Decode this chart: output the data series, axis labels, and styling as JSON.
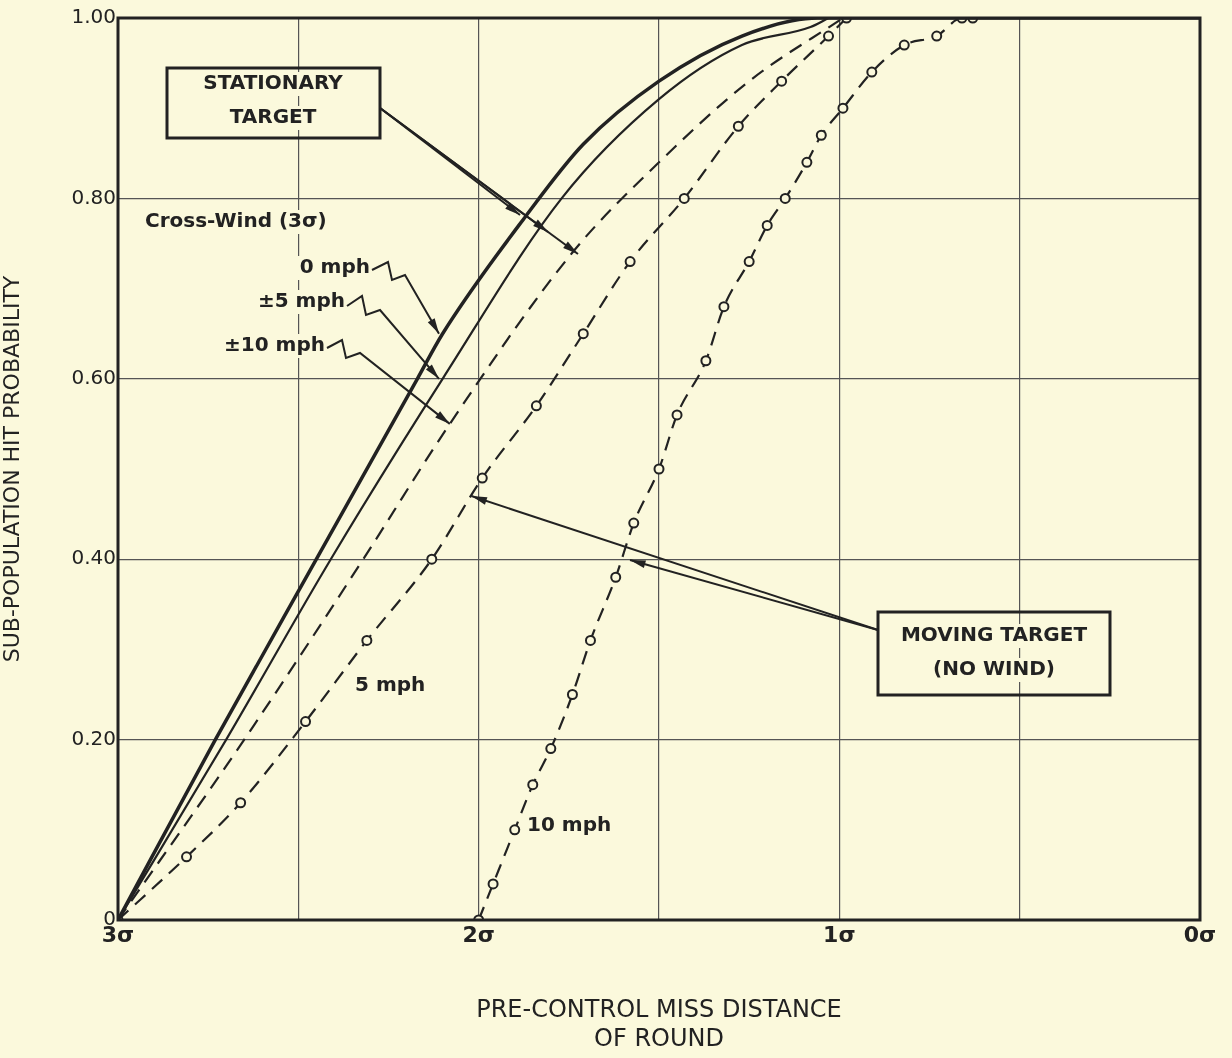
{
  "chart_data": {
    "type": "line",
    "xlabel": "PRE-CONTROL MISS DISTANCE\nOF ROUND",
    "ylabel": "SUB-POPULATION HIT PROBABILITY",
    "annotations": [
      "STATIONARY\nTARGET",
      "Cross-Wind (3σ)",
      {
        "text": "MOVING TARGET\n(NO WIND)",
        "x": 2.02,
        "y": 0.47
      },
      {
        "text": "0 mph",
        "x": 2.11,
        "y": 0.65
      },
      {
        "text": "±5 mph",
        "x": 2.11,
        "y": 0.6
      },
      {
        "text": "±10 mph",
        "x": 2.08,
        "y": 0.55
      }
    ],
    "xlim": [
      3,
      0
    ],
    "xticks": [
      {
        "value": 3,
        "label": "3σ"
      },
      {
        "value": 2.5,
        "label": null
      },
      {
        "value": 2,
        "label": "2σ"
      },
      {
        "value": 1.5,
        "label": null
      },
      {
        "value": 1,
        "label": "1σ"
      },
      {
        "value": 0.5,
        "label": null
      },
      {
        "value": 0,
        "label": "0σ"
      }
    ],
    "ylim": [
      0,
      1
    ],
    "yticks": [
      {
        "value": 0,
        "label": "0"
      },
      {
        "value": 0.2,
        "label": "0.20"
      },
      {
        "value": 0.4,
        "label": "0.40"
      },
      {
        "value": 0.6,
        "label": "0.60"
      },
      {
        "value": 0.8,
        "label": "0.80"
      },
      {
        "value": 1,
        "label": "1.00"
      }
    ],
    "grid": true,
    "legend": false,
    "series": [
      {
        "color": "#222222",
        "line_style": "solid",
        "marker": "none",
        "x": [
          3,
          2.73,
          2.45,
          2.17,
          2.1,
          1.87,
          1.71,
          1.5,
          1.27,
          1.06,
          0
        ],
        "values": [
          0,
          0.2,
          0.4,
          0.6,
          0.65,
          0.78,
          0.86,
          0.93,
          0.98,
          1,
          1
        ]
      },
      {
        "color": "#222222",
        "line_style": "solid",
        "marker": "none",
        "x": [
          3,
          2.7,
          2.41,
          2.1,
          1.77,
          1.5,
          1.27,
          1.08,
          1.03
        ],
        "values": [
          0,
          0.2,
          0.4,
          0.6,
          0.8,
          0.91,
          0.97,
          0.99,
          1
        ]
      },
      {
        "color": "#222222",
        "line_style": "dashed",
        "marker": "none",
        "x": [
          3,
          2.65,
          2.32,
          2.08,
          1.74,
          1.5,
          1.25,
          0.99
        ],
        "values": [
          0,
          0.2,
          0.4,
          0.55,
          0.74,
          0.84,
          0.93,
          1
        ]
      },
      {
        "name": "5 mph",
        "color": "#222222",
        "line_style": "dashed",
        "marker": "circle",
        "x": [
          3,
          2.81,
          2.66,
          2.48,
          2.31,
          2.13,
          1.99,
          1.84,
          1.71,
          1.58,
          1.43,
          1.28,
          1.16,
          1.03,
          0.98
        ],
        "values": [
          0,
          0.07,
          0.13,
          0.22,
          0.31,
          0.4,
          0.49,
          0.57,
          0.65,
          0.73,
          0.8,
          0.88,
          0.93,
          0.98,
          1
        ]
      },
      {
        "name": "10 mph",
        "color": "#222222",
        "line_style": "dashed",
        "marker": "circle",
        "x": [
          2,
          1.96,
          1.9,
          1.85,
          1.8,
          1.74,
          1.69,
          1.62,
          1.57,
          1.5,
          1.45,
          1.37,
          1.32,
          1.25,
          1.2,
          1.15,
          1.09,
          1.05,
          0.99,
          0.91,
          0.82,
          0.73,
          0.66,
          0.63
        ],
        "values": [
          0,
          0.04,
          0.1,
          0.15,
          0.19,
          0.25,
          0.31,
          0.38,
          0.44,
          0.5,
          0.56,
          0.62,
          0.68,
          0.73,
          0.77,
          0.8,
          0.84,
          0.87,
          0.9,
          0.94,
          0.97,
          0.98,
          1,
          1
        ]
      }
    ]
  }
}
